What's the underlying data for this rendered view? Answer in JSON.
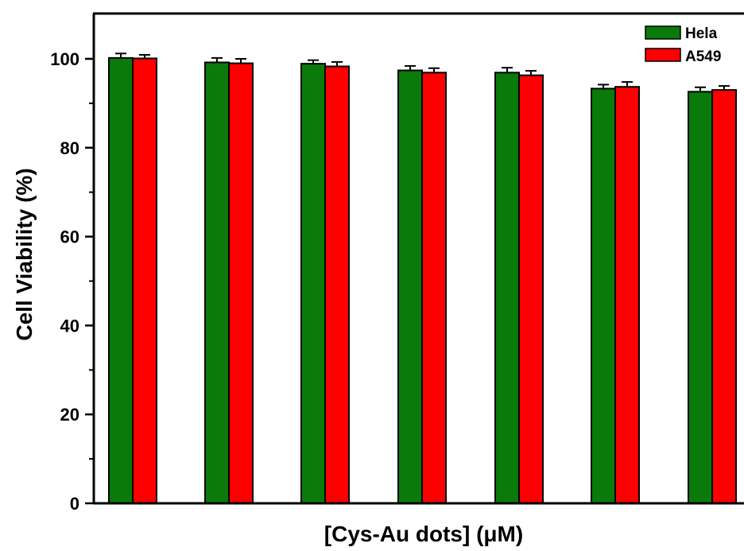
{
  "chart_data": {
    "type": "bar",
    "title": "",
    "xlabel": "[Cys-Au dots] (μM)",
    "ylabel": "Cell Viability (%)",
    "ylim": [
      0,
      110
    ],
    "yticks": [
      0,
      20,
      40,
      60,
      80,
      100
    ],
    "categories": [
      "",
      "",
      "",
      "",
      "",
      "",
      ""
    ],
    "legend_position": "top-right",
    "grid": false,
    "series": [
      {
        "name": "Hela",
        "color": "#0a7a0a",
        "values": [
          100.2,
          99.2,
          98.9,
          97.4,
          96.9,
          93.3,
          92.6
        ],
        "errors": [
          1.0,
          1.0,
          0.8,
          1.0,
          1.1,
          0.9,
          1.0
        ]
      },
      {
        "name": "A549",
        "color": "#ff0000",
        "values": [
          100.1,
          99.0,
          98.3,
          96.9,
          96.3,
          93.7,
          93.0
        ],
        "errors": [
          0.8,
          1.0,
          1.0,
          1.0,
          1.0,
          1.1,
          0.9
        ]
      }
    ]
  }
}
